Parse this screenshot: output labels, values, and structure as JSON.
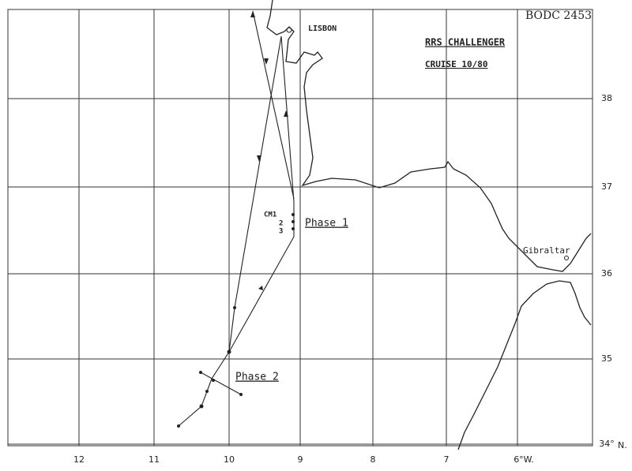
{
  "header": {
    "id": "BODC 2453",
    "title": "RRS CHALLENGER",
    "subtitle": "CRUISE 10/80"
  },
  "places": {
    "lisbon": "LISBON",
    "gibraltar": "Gibraltar"
  },
  "moorings": {
    "name": "CM1",
    "second": "2",
    "third": "3"
  },
  "phases": {
    "first": "Phase 1",
    "second": "Phase 2"
  },
  "axes": {
    "longitude": [
      "12",
      "11",
      "10",
      "9",
      "8",
      "7",
      "6°W."
    ],
    "latitude": [
      "38",
      "37",
      "36",
      "35",
      "34°"
    ],
    "lat_unit": "N."
  }
}
